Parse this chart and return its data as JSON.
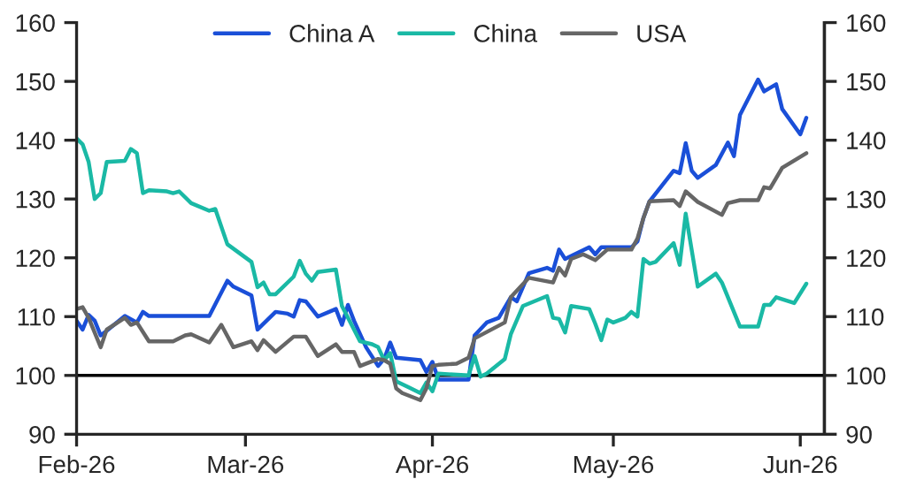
{
  "chart_data": {
    "type": "line",
    "series": [
      {
        "name": "China A",
        "color": "#1a4fd8",
        "x": [
          "2026-02-01",
          "2026-02-02",
          "2026-02-03",
          "2026-02-04",
          "2026-02-05",
          "2026-02-06",
          "2026-02-09",
          "2026-02-11",
          "2026-02-12",
          "2026-02-13",
          "2026-02-23",
          "2026-02-26",
          "2026-02-27",
          "2026-03-02",
          "2026-03-03",
          "2026-03-06",
          "2026-03-08",
          "2026-03-09",
          "2026-03-10",
          "2026-03-11",
          "2026-03-13",
          "2026-03-16",
          "2026-03-17",
          "2026-03-18",
          "2026-03-19",
          "2026-03-21",
          "2026-03-23",
          "2026-03-24",
          "2026-03-25",
          "2026-03-26",
          "2026-03-30",
          "2026-03-31",
          "2026-04-01",
          "2026-04-02",
          "2026-04-07",
          "2026-04-08",
          "2026-04-10",
          "2026-04-12",
          "2026-04-14",
          "2026-04-15",
          "2026-04-17",
          "2026-04-20",
          "2026-04-21",
          "2026-04-22",
          "2026-04-23",
          "2026-04-27",
          "2026-04-28",
          "2026-04-29",
          "2026-05-04",
          "2026-05-05",
          "2026-05-06",
          "2026-05-07",
          "2026-05-11",
          "2026-05-12",
          "2026-05-13",
          "2026-05-14",
          "2026-05-15",
          "2026-05-18",
          "2026-05-20",
          "2026-05-21",
          "2026-05-22",
          "2026-05-25",
          "2026-05-26",
          "2026-05-28",
          "2026-05-29",
          "2026-06-01",
          "2026-06-02"
        ],
        "values": [
          109.3,
          107.8,
          110.3,
          109.3,
          106.8,
          107.6,
          110.1,
          109,
          110.8,
          110.1,
          110.1,
          116.1,
          115.1,
          113.6,
          107.8,
          110.8,
          110.5,
          110,
          112.8,
          112.6,
          110,
          111.3,
          108.6,
          112,
          109.3,
          104.8,
          101.6,
          102.8,
          105.6,
          103,
          102.6,
          100.6,
          102.3,
          99.3,
          99.3,
          106.8,
          109,
          109.8,
          113.3,
          112.6,
          117.4,
          118.3,
          117.8,
          121.4,
          119.8,
          121.8,
          120.6,
          121.8,
          121.8,
          122.8,
          126.8,
          129.6,
          134.8,
          134.4,
          139.5,
          134.8,
          133.6,
          135.8,
          139.6,
          137.3,
          144.3,
          150.3,
          148.3,
          149.5,
          145.3,
          141,
          143.8
        ]
      },
      {
        "name": "China",
        "color": "#1ab9a5",
        "x": [
          "2026-02-01",
          "2026-02-02",
          "2026-02-03",
          "2026-02-04",
          "2026-02-05",
          "2026-02-06",
          "2026-02-09",
          "2026-02-10",
          "2026-02-11",
          "2026-02-12",
          "2026-02-13",
          "2026-02-16",
          "2026-02-17",
          "2026-02-18",
          "2026-02-20",
          "2026-02-23",
          "2026-02-24",
          "2026-02-26",
          "2026-02-28",
          "2026-03-02",
          "2026-03-03",
          "2026-03-04",
          "2026-03-05",
          "2026-03-06",
          "2026-03-09",
          "2026-03-10",
          "2026-03-11",
          "2026-03-12",
          "2026-03-13",
          "2026-03-16",
          "2026-03-17",
          "2026-03-18",
          "2026-03-20",
          "2026-03-22",
          "2026-03-23",
          "2026-03-24",
          "2026-03-25",
          "2026-03-26",
          "2026-03-28",
          "2026-03-30",
          "2026-03-31",
          "2026-04-01",
          "2026-04-02",
          "2026-04-07",
          "2026-04-08",
          "2026-04-09",
          "2026-04-10",
          "2026-04-13",
          "2026-04-14",
          "2026-04-16",
          "2026-04-20",
          "2026-04-21",
          "2026-04-22",
          "2026-04-23",
          "2026-04-24",
          "2026-04-27",
          "2026-04-28",
          "2026-04-29",
          "2026-04-30",
          "2026-05-01",
          "2026-05-03",
          "2026-05-04",
          "2026-05-05",
          "2026-05-06",
          "2026-05-07",
          "2026-05-08",
          "2026-05-11",
          "2026-05-12",
          "2026-05-13",
          "2026-05-15",
          "2026-05-18",
          "2026-05-19",
          "2026-05-22",
          "2026-05-25",
          "2026-05-26",
          "2026-05-27",
          "2026-05-28",
          "2026-05-31",
          "2026-06-02"
        ],
        "values": [
          140.3,
          139.3,
          136.3,
          130,
          131,
          136.3,
          136.5,
          138.5,
          137.8,
          131,
          131.5,
          131.3,
          131,
          131.3,
          129.3,
          128,
          128.3,
          122.3,
          120.8,
          119.3,
          115,
          115.8,
          113.8,
          113.8,
          116.8,
          119.5,
          117.3,
          116.1,
          117.6,
          118,
          111.8,
          109.8,
          105.8,
          105.3,
          104.8,
          102.6,
          103.8,
          99,
          98,
          97,
          98.8,
          97.3,
          100.3,
          100,
          103.3,
          99.8,
          100.3,
          102.8,
          107,
          111.8,
          113.5,
          109.8,
          109.6,
          107.3,
          111.8,
          111.3,
          108.8,
          106,
          109.5,
          109,
          109.8,
          110.8,
          110,
          119.8,
          119,
          119.3,
          122.5,
          118.8,
          127.5,
          115.1,
          117.3,
          115.8,
          108.3,
          108.3,
          112,
          112,
          113.3,
          112.3,
          115.6
        ]
      },
      {
        "name": "USA",
        "color": "#666666",
        "x": [
          "2026-02-01",
          "2026-02-02",
          "2026-02-03",
          "2026-02-05",
          "2026-02-06",
          "2026-02-09",
          "2026-02-10",
          "2026-02-11",
          "2026-02-13",
          "2026-02-17",
          "2026-02-19",
          "2026-02-20",
          "2026-02-23",
          "2026-02-25",
          "2026-02-27",
          "2026-03-02",
          "2026-03-03",
          "2026-03-04",
          "2026-03-06",
          "2026-03-09",
          "2026-03-11",
          "2026-03-13",
          "2026-03-16",
          "2026-03-17",
          "2026-03-19",
          "2026-03-20",
          "2026-03-23",
          "2026-03-24",
          "2026-03-25",
          "2026-03-26",
          "2026-03-27",
          "2026-03-30",
          "2026-03-31",
          "2026-04-01",
          "2026-04-02",
          "2026-04-05",
          "2026-04-07",
          "2026-04-08",
          "2026-04-13",
          "2026-04-14",
          "2026-04-17",
          "2026-04-21",
          "2026-04-22",
          "2026-04-23",
          "2026-04-24",
          "2026-04-26",
          "2026-04-28",
          "2026-04-30",
          "2026-05-04",
          "2026-05-05",
          "2026-05-06",
          "2026-05-07",
          "2026-05-11",
          "2026-05-12",
          "2026-05-13",
          "2026-05-15",
          "2026-05-19",
          "2026-05-20",
          "2026-05-22",
          "2026-05-25",
          "2026-05-26",
          "2026-05-27",
          "2026-05-29",
          "2026-06-02"
        ],
        "values": [
          111.3,
          111.6,
          109.8,
          104.8,
          107.8,
          109.8,
          108.6,
          109,
          105.8,
          105.8,
          106.8,
          107,
          105.6,
          108.6,
          104.8,
          105.8,
          104.3,
          106,
          104,
          106.6,
          106.6,
          103.3,
          105.3,
          104,
          104,
          101.6,
          102.8,
          102.6,
          102,
          97.8,
          97,
          95.8,
          97.8,
          101.6,
          101.8,
          102,
          103,
          106.3,
          109,
          113.3,
          116.6,
          115.8,
          118.3,
          117,
          119.8,
          120.6,
          119.6,
          121.4,
          121.4,
          123.3,
          126.8,
          129.6,
          129.8,
          128.8,
          131.3,
          129.5,
          127.3,
          129.3,
          129.8,
          129.8,
          132,
          131.8,
          135.3,
          137.8
        ]
      }
    ],
    "xlim": [
      "2026-02-01",
      "2026-06-05"
    ],
    "xticks": [
      {
        "value": "2026-02-01",
        "label": "Feb-26"
      },
      {
        "value": "2026-03-01",
        "label": "Mar-26"
      },
      {
        "value": "2026-04-01",
        "label": "Apr-26"
      },
      {
        "value": "2026-05-01",
        "label": "May-26"
      },
      {
        "value": "2026-06-01",
        "label": "Jun-26"
      }
    ],
    "ylim": [
      90,
      160
    ],
    "yticks": [
      90,
      100,
      110,
      120,
      130,
      140,
      150,
      160
    ],
    "y2lim": [
      90,
      160
    ],
    "y2ticks": [
      90,
      100,
      110,
      120,
      130,
      140,
      150,
      160
    ],
    "ref_lines": [
      {
        "axis": "y",
        "value": 100,
        "color": "#000000"
      }
    ],
    "legend": "top",
    "grid": false
  }
}
